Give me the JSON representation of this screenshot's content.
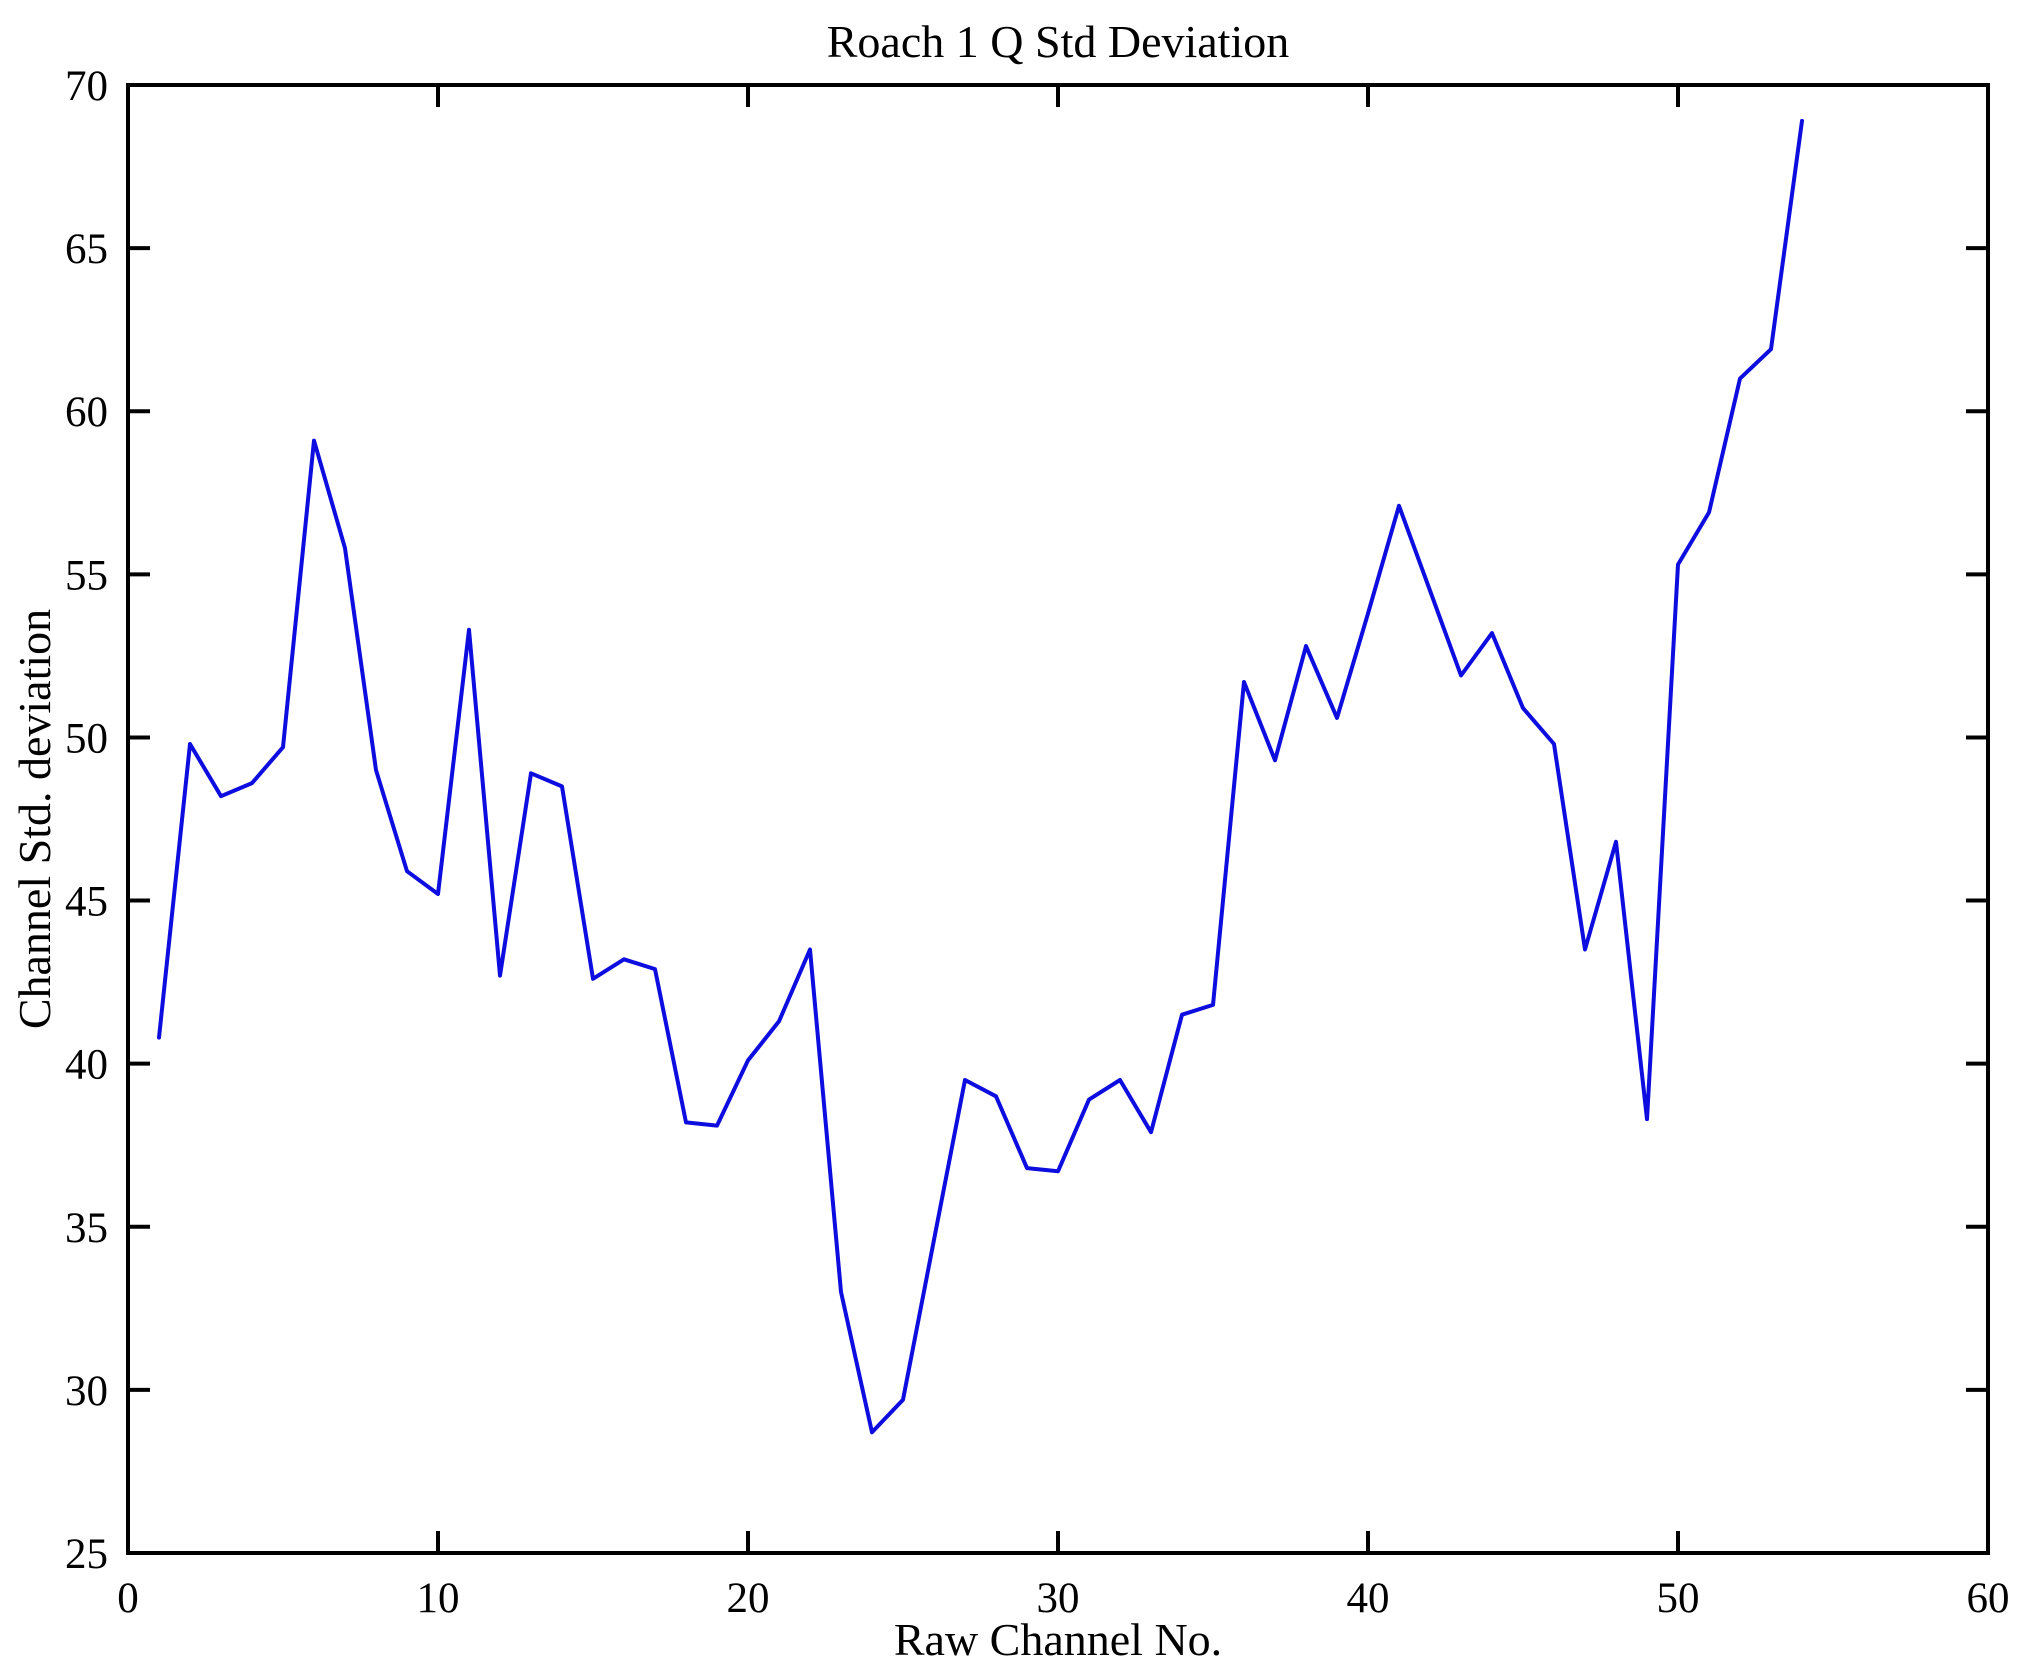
{
  "page": {
    "background": "#ffffff"
  },
  "chart_data": {
    "type": "line",
    "title": "Roach 1 Q Std Deviation",
    "xlabel": "Raw Channel No.",
    "ylabel": "Channel Std. deviation",
    "xlim": [
      0,
      60
    ],
    "ylim": [
      25,
      70
    ],
    "x_ticks": [
      0,
      10,
      20,
      30,
      40,
      50,
      60
    ],
    "y_ticks": [
      25,
      30,
      35,
      40,
      45,
      50,
      55,
      60,
      65,
      70
    ],
    "grid": false,
    "legend": null,
    "box": true,
    "tick_direction": "in",
    "line_color": "#0d0de0",
    "frame_color": "#000000",
    "series": [
      {
        "name": "channel-std-deviation",
        "x": [
          1,
          2,
          3,
          4,
          5,
          6,
          7,
          8,
          9,
          10,
          11,
          12,
          13,
          14,
          15,
          16,
          17,
          18,
          19,
          20,
          21,
          22,
          23,
          24,
          25,
          26,
          27,
          28,
          29,
          30,
          31,
          32,
          33,
          34,
          35,
          36,
          37,
          38,
          39,
          40,
          41,
          42,
          43,
          44,
          45,
          46,
          47,
          48,
          49,
          50,
          51,
          52,
          53,
          54
        ],
        "y": [
          40.8,
          49.8,
          48.2,
          48.6,
          49.7,
          59.1,
          55.8,
          49.0,
          45.9,
          45.2,
          53.3,
          42.7,
          48.9,
          48.5,
          42.6,
          43.2,
          42.9,
          38.2,
          38.1,
          40.1,
          41.3,
          43.5,
          33.0,
          28.7,
          29.7,
          34.6,
          39.5,
          39.0,
          36.8,
          36.7,
          38.9,
          39.5,
          37.9,
          41.5,
          41.8,
          51.7,
          49.3,
          52.8,
          50.6,
          53.8,
          57.1,
          54.5,
          51.9,
          53.2,
          50.9,
          49.8,
          43.5,
          46.8,
          38.3,
          55.3,
          56.9,
          61.0,
          61.9,
          68.9
        ]
      }
    ]
  }
}
